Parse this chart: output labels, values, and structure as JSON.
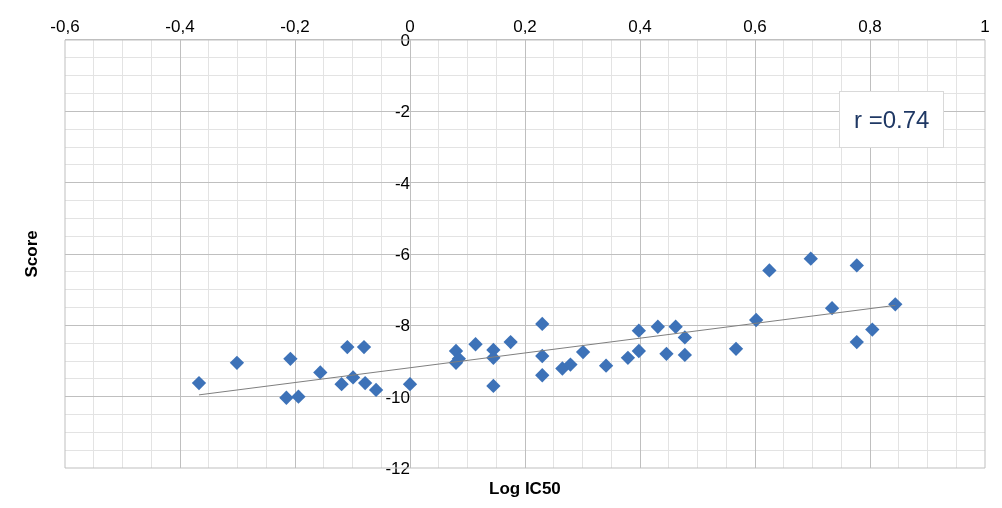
{
  "chart_data": {
    "type": "scatter",
    "xlabel": "Log IC50",
    "ylabel": "Score",
    "annotations": [
      "r =0.74"
    ],
    "xlim": [
      -0.6,
      1
    ],
    "ylim": [
      -12,
      0
    ],
    "xticks": [
      {
        "value": -0.6,
        "label": "-0,6"
      },
      {
        "value": -0.4,
        "label": "-0,4"
      },
      {
        "value": -0.2,
        "label": "-0,2"
      },
      0,
      {
        "value": 0.2,
        "label": "0,2"
      },
      {
        "value": 0.4,
        "label": "0,4"
      },
      {
        "value": 0.6,
        "label": "0,6"
      },
      {
        "value": 0.8,
        "label": "0,8"
      },
      1
    ],
    "yticks": [
      -12,
      -10,
      -8,
      -6,
      -4,
      -2,
      0
    ],
    "grid": true,
    "series": [
      {
        "marker": "diamond",
        "color": "#3d72b8",
        "x": [
          -0.367,
          -0.301,
          -0.208,
          -0.215,
          -0.194,
          -0.156,
          -0.119,
          -0.109,
          -0.099,
          -0.08,
          -0.078,
          -0.059,
          0.0,
          0.08,
          0.08,
          0.085,
          0.114,
          0.145,
          0.145,
          0.145,
          0.175,
          0.23,
          0.23,
          0.23,
          0.265,
          0.279,
          0.301,
          0.341,
          0.379,
          0.398,
          0.398,
          0.431,
          0.446,
          0.462,
          0.478,
          0.478,
          0.567,
          0.602,
          0.625,
          0.697,
          0.734,
          0.777,
          0.777,
          0.804,
          0.844
        ],
        "values": [
          -9.62,
          -9.05,
          -8.94,
          -10.03,
          -10.0,
          -9.32,
          -9.65,
          -8.61,
          -9.46,
          -8.61,
          -9.62,
          -9.81,
          -9.65,
          -8.72,
          -9.05,
          -8.94,
          -8.53,
          -8.69,
          -8.91,
          -9.7,
          -8.47,
          -7.96,
          -8.86,
          -9.4,
          -9.21,
          -9.1,
          -8.75,
          -9.13,
          -8.91,
          -8.15,
          -8.72,
          -8.04,
          -8.8,
          -8.04,
          -8.34,
          -8.83,
          -8.66,
          -7.85,
          -6.46,
          -6.13,
          -7.52,
          -6.32,
          -8.47,
          -8.12,
          -7.41
        ]
      },
      {
        "type": "line",
        "marker": "none",
        "color": "#7f7f7f",
        "x": [
          -0.367,
          0.844
        ],
        "values": [
          -9.95,
          -7.44
        ]
      }
    ]
  }
}
